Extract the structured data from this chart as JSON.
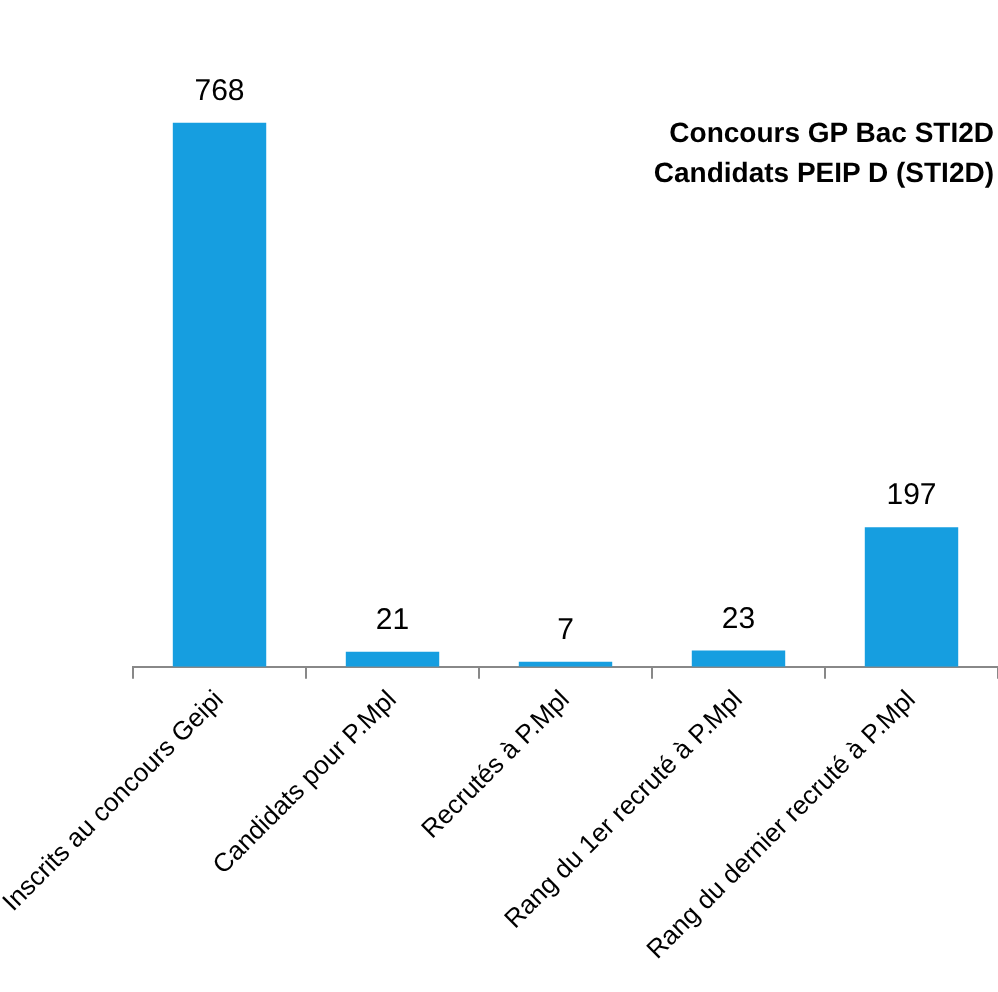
{
  "chart_data": {
    "type": "bar",
    "title": "Concours GP Bac STI2D\nCandidats PEIP D (STI2D)",
    "categories": [
      "Inscrits au concours Geipi",
      "Candidats pour P.Mpl",
      "Recrutés à P.Mpl",
      "Rang du 1er recruté à P.Mpl",
      "Rang du dernier recruté à P.Mpl"
    ],
    "values": [
      768,
      21,
      7,
      23,
      197
    ],
    "color": "#169ee0",
    "data_labels": true,
    "tick_labels": "x",
    "grid": false,
    "legend": false
  }
}
